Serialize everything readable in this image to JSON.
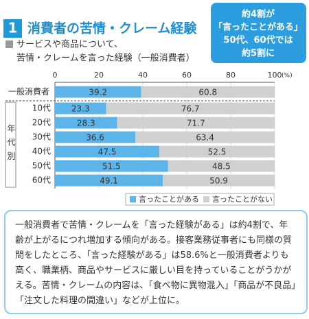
{
  "header": {
    "number": "1",
    "title": "消費者の苦情・クレーム経験",
    "subtitle_lines": [
      "サービスや商品について、",
      "苦情・クレームを言った経験（一般消費者）"
    ]
  },
  "callout": [
    "約4割が",
    "「言ったことがある」",
    "50代、60代では",
    "約5割に"
  ],
  "chart_data": {
    "type": "stacked_bar_horizontal",
    "categories": [
      "一般消費者",
      "10代",
      "20代",
      "30代",
      "40代",
      "50代",
      "60代"
    ],
    "group_label": "年代別",
    "series": [
      {
        "name": "言ったことがある",
        "color": "#5db4e8",
        "values": [
          39.2,
          23.3,
          28.3,
          36.6,
          47.5,
          51.5,
          49.1
        ]
      },
      {
        "name": "言ったことがない",
        "color": "#d0d0d0",
        "values": [
          60.8,
          76.7,
          71.7,
          63.4,
          52.5,
          48.5,
          50.9
        ]
      }
    ],
    "xlim": [
      0,
      100
    ],
    "xticks": [
      0,
      20,
      40,
      60,
      80,
      100
    ],
    "x_unit": "(%)",
    "grid": true
  },
  "body": "一般消費者で苦情・クレームを「言った経験がある」は約4割で、年齢が上がるにつれ増加する傾向がある。接客業務従事者にも同様の質問をしたところ、「言った経験がある」は58.6%と一般消費者よりも高く、職業柄、商品やサービスに厳しい目を持っていることがうかがえる。苦情・クレームの内容は、「食べ物に異物混入」「商品が不良品」「注文した料理の間違い」などが上位に。"
}
